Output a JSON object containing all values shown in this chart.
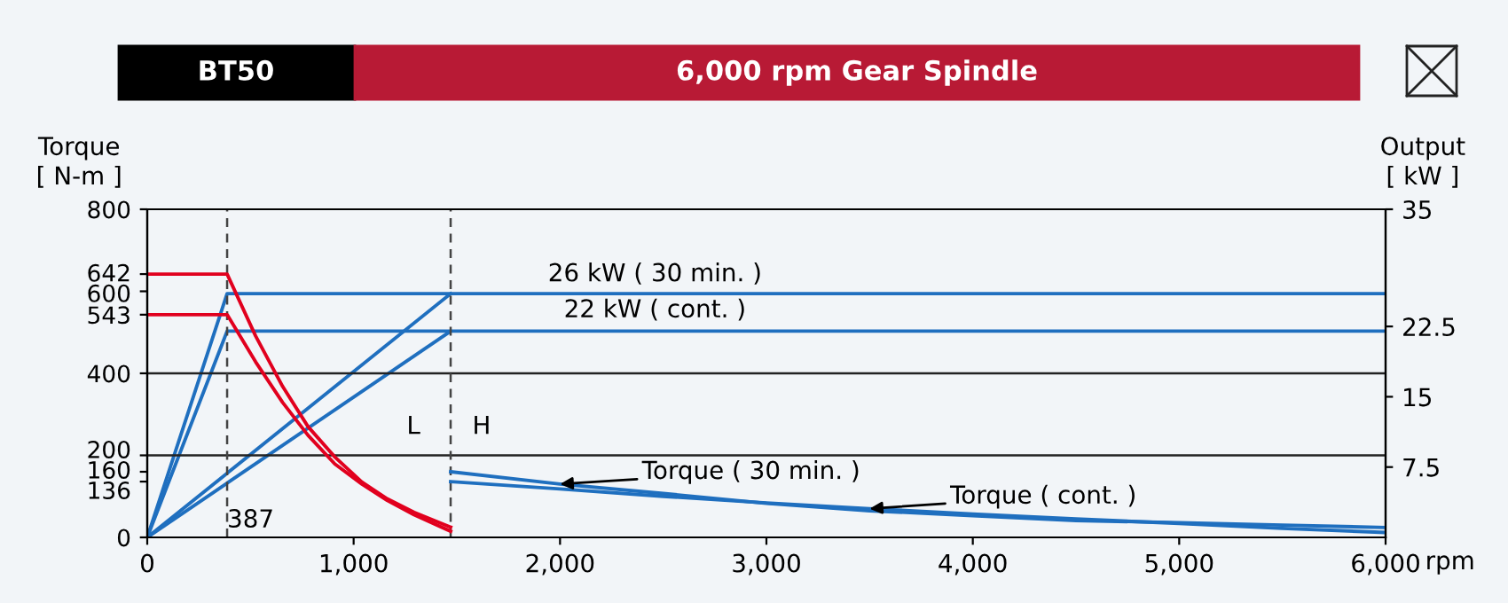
{
  "chart_data": {
    "type": "line",
    "title": "6,000 rpm Gear Spindle",
    "subtitle": "BT50",
    "xlabel": "rpm",
    "ylabel": "Torque\n[ N-m ]",
    "y2label": "Output\n[ kW ]",
    "xlim": [
      0,
      6000
    ],
    "xticks": [
      0,
      {
        "value": 1000,
        "label": "1,000"
      },
      {
        "value": 2000,
        "label": "2,000"
      },
      {
        "value": 3000,
        "label": "3,000"
      },
      {
        "value": 4000,
        "label": "4,000"
      },
      {
        "value": 5000,
        "label": "5,000"
      },
      {
        "value": 6000,
        "label": "6,000"
      }
    ],
    "ylim": [
      0,
      800
    ],
    "yticks": [
      0,
      136,
      160,
      200,
      400,
      543,
      600,
      642,
      800
    ],
    "y2lim": [
      0,
      35
    ],
    "y2ticks": [
      7.5,
      15,
      22.5,
      35
    ],
    "series": [
      {
        "color": "#e1001e",
        "x": [
          0,
          387,
          525,
          656,
          779,
          909,
          1040,
          1163,
          1293,
          1470
        ],
        "values": [
          642,
          642,
          491,
          368,
          270,
          196,
          135,
          94,
          61,
          25
        ]
      },
      {
        "color": "#e1001e",
        "x": [
          0,
          387,
          525,
          656,
          779,
          909,
          1040,
          1163,
          1293,
          1470
        ],
        "values": [
          543,
          543,
          428,
          329,
          249,
          179,
          130,
          90,
          55,
          15
        ]
      },
      {
        "color": "#1f6fbf",
        "x": [
          1470,
          2000,
          2500,
          3000,
          3500,
          4000,
          4500,
          5000,
          5500,
          6000
        ],
        "values": [
          160,
          130,
          107,
          83,
          65,
          53,
          41,
          36,
          30,
          24
        ]
      },
      {
        "color": "#1f6fbf",
        "x": [
          1470,
          2000,
          2500,
          3000,
          3500,
          4000,
          4500,
          5000,
          5500,
          6000
        ],
        "values": [
          136,
          118,
          100,
          84,
          70,
          57,
          45,
          34,
          22,
          12
        ]
      },
      {
        "color": "#1f6fbf",
        "axis": "y2",
        "x": [
          0,
          387,
          6000
        ],
        "values": [
          0,
          26,
          26
        ]
      },
      {
        "color": "#1f6fbf",
        "axis": "y2",
        "x": [
          0,
          387,
          6000
        ],
        "values": [
          0,
          22,
          22
        ]
      },
      {
        "color": "#1f6fbf",
        "axis": "y2",
        "x": [
          0,
          1470
        ],
        "values": [
          0,
          26
        ]
      },
      {
        "color": "#1f6fbf",
        "axis": "y2",
        "x": [
          0,
          1470
        ],
        "values": [
          0,
          22
        ]
      }
    ],
    "ref_lines": [
      {
        "axis": "y",
        "value": 200,
        "color": "#222222",
        "line_style": "solid"
      },
      {
        "axis": "y",
        "value": 400,
        "color": "#222222",
        "line_style": "solid"
      },
      {
        "axis": "x",
        "value": 387,
        "label": "387",
        "color": "#444444",
        "line_style": "dashed"
      },
      {
        "axis": "x",
        "value": 1470,
        "color": "#444444",
        "line_style": "dashed"
      }
    ],
    "annotations": [
      "26 kW ( 30 min. )",
      "22 kW ( cont. )",
      "L",
      "H",
      {
        "text": "Torque ( 30 min. )",
        "x": 2000,
        "y": 130
      },
      {
        "text": "Torque ( cont. )",
        "x": 3500,
        "y": 70
      }
    ],
    "marker": "none",
    "line_style": "solid"
  }
}
